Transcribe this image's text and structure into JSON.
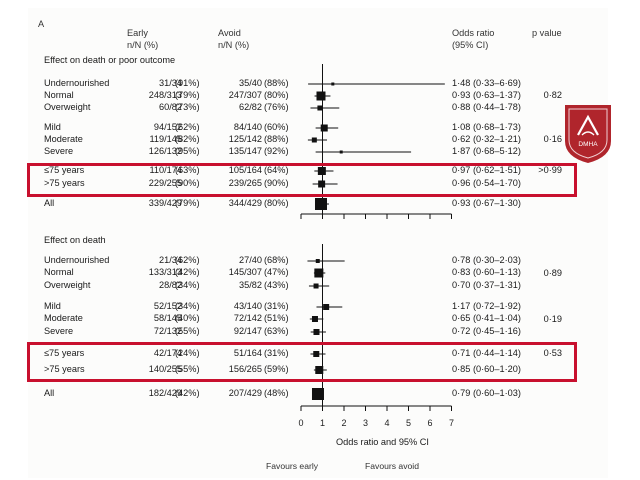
{
  "panel_label": "A",
  "headers": {
    "early": [
      "Early",
      "n/N (%)"
    ],
    "avoid": [
      "Avoid",
      "n/N (%)"
    ],
    "or": [
      "Odds ratio",
      "(95% CI)"
    ],
    "p": "p value"
  },
  "colors": {
    "highlight": "#c8102e",
    "marker": "#111111",
    "logo": "#b0252c"
  },
  "logo_text": "DMHA",
  "axis": {
    "min": 0,
    "max": 7,
    "ticks": [
      "0",
      "1",
      "2",
      "3",
      "4",
      "5",
      "6",
      "7"
    ],
    "ref": 1,
    "title": "Odds ratio and 95% CI"
  },
  "favours": {
    "left": "Favours early",
    "right": "Favours avoid"
  },
  "sections": [
    {
      "title": "Effect on death or poor outcome",
      "groups": [
        {
          "p": "0·82",
          "rows": [
            {
              "label": "Undernourished",
              "early_n": "31/34",
              "early_pct": "(91%)",
              "avoid_n": "35/40",
              "avoid_pct": "(88%)",
              "or_text": "1·48 (0·33–6·69)",
              "or": 1.48,
              "lo": 0.33,
              "hi": 6.69,
              "w": 3
            },
            {
              "label": "Normal",
              "early_n": "248/313",
              "early_pct": "(79%)",
              "avoid_n": "247/307",
              "avoid_pct": "(80%)",
              "or_text": "0·93 (0·63–1·37)",
              "or": 0.93,
              "lo": 0.63,
              "hi": 1.37,
              "w": 9
            },
            {
              "label": "Overweight",
              "early_n": "60/82",
              "early_pct": "(73%)",
              "avoid_n": "62/82",
              "avoid_pct": "(76%)",
              "or_text": "0·88 (0·44–1·78)",
              "or": 0.88,
              "lo": 0.44,
              "hi": 1.78,
              "w": 5
            }
          ]
        },
        {
          "p": "0·16",
          "rows": [
            {
              "label": "Mild",
              "early_n": "94/152",
              "early_pct": "(62%)",
              "avoid_n": "84/140",
              "avoid_pct": "(60%)",
              "or_text": "1·08 (0·68–1·73)",
              "or": 1.08,
              "lo": 0.68,
              "hi": 1.73,
              "w": 7
            },
            {
              "label": "Moderate",
              "early_n": "119/145",
              "early_pct": "(82%)",
              "avoid_n": "125/142",
              "avoid_pct": "(88%)",
              "or_text": "0·62 (0·32–1·21)",
              "or": 0.62,
              "lo": 0.32,
              "hi": 1.21,
              "w": 5
            },
            {
              "label": "Severe",
              "early_n": "126/132",
              "early_pct": "(95%)",
              "avoid_n": "135/147",
              "avoid_pct": "(92%)",
              "or_text": "1·87 (0·68–5·12)",
              "or": 1.87,
              "lo": 0.68,
              "hi": 5.12,
              "w": 3
            }
          ]
        },
        {
          "p": ">0·99",
          "highlight": true,
          "rows": [
            {
              "label": "≤75 years",
              "early_n": "110/174",
              "early_pct": "(63%)",
              "avoid_n": "105/164",
              "avoid_pct": "(64%)",
              "or_text": "0·97 (0·62–1·51)",
              "or": 0.97,
              "lo": 0.62,
              "hi": 1.51,
              "w": 8
            },
            {
              "label": ">75 years",
              "early_n": "229/255",
              "early_pct": "(90%)",
              "avoid_n": "239/265",
              "avoid_pct": "(90%)",
              "or_text": "0·96 (0·54–1·70)",
              "or": 0.96,
              "lo": 0.54,
              "hi": 1.7,
              "w": 7
            }
          ]
        },
        {
          "p": "",
          "rows": [
            {
              "label": "All",
              "early_n": "339/429",
              "early_pct": "(79%)",
              "avoid_n": "344/429",
              "avoid_pct": "(80%)",
              "or_text": "0·93 (0·67–1·30)",
              "or": 0.93,
              "lo": 0.67,
              "hi": 1.3,
              "w": 12
            }
          ]
        }
      ]
    },
    {
      "title": "Effect on death",
      "groups": [
        {
          "p": "0·89",
          "rows": [
            {
              "label": "Undernourished",
              "early_n": "21/34",
              "early_pct": "(62%)",
              "avoid_n": "27/40",
              "avoid_pct": "(68%)",
              "or_text": "0·78 (0·30–2·03)",
              "or": 0.78,
              "lo": 0.3,
              "hi": 2.03,
              "w": 4
            },
            {
              "label": "Normal",
              "early_n": "133/313",
              "early_pct": "(42%)",
              "avoid_n": "145/307",
              "avoid_pct": "(47%)",
              "or_text": "0·83 (0·60–1·13)",
              "or": 0.83,
              "lo": 0.6,
              "hi": 1.13,
              "w": 9
            },
            {
              "label": "Overweight",
              "early_n": "28/82",
              "early_pct": "(34%)",
              "avoid_n": "35/82",
              "avoid_pct": "(43%)",
              "or_text": "0·70 (0·37–1·31)",
              "or": 0.7,
              "lo": 0.37,
              "hi": 1.31,
              "w": 5
            }
          ]
        },
        {
          "p": "0·19",
          "rows": [
            {
              "label": "Mild",
              "early_n": "52/152",
              "early_pct": "(34%)",
              "avoid_n": "43/140",
              "avoid_pct": "(31%)",
              "or_text": "1·17 (0·72–1·92)",
              "or": 1.17,
              "lo": 0.72,
              "hi": 1.92,
              "w": 6
            },
            {
              "label": "Moderate",
              "early_n": "58/145",
              "early_pct": "(40%)",
              "avoid_n": "72/142",
              "avoid_pct": "(51%)",
              "or_text": "0·65 (0·41–1·04)",
              "or": 0.65,
              "lo": 0.41,
              "hi": 1.04,
              "w": 6
            },
            {
              "label": "Severe",
              "early_n": "72/132",
              "early_pct": "(55%)",
              "avoid_n": "92/147",
              "avoid_pct": "(63%)",
              "or_text": "0·72 (0·45–1·16)",
              "or": 0.72,
              "lo": 0.45,
              "hi": 1.16,
              "w": 6
            }
          ]
        },
        {
          "p": "0·53",
          "highlight": true,
          "rows": [
            {
              "label": "≤75 years",
              "early_n": "42/174",
              "early_pct": "(24%)",
              "avoid_n": "51/164",
              "avoid_pct": "(31%)",
              "or_text": "0·71 (0·44–1·14)",
              "or": 0.71,
              "lo": 0.44,
              "hi": 1.14,
              "w": 6
            },
            {
              "label": ">75 years",
              "early_n": "140/255",
              "early_pct": "(55%)",
              "avoid_n": "156/265",
              "avoid_pct": "(59%)",
              "or_text": "0·85 (0·60–1·20)",
              "or": 0.85,
              "lo": 0.6,
              "hi": 1.2,
              "w": 8
            }
          ]
        },
        {
          "p": "",
          "rows": [
            {
              "label": "All",
              "early_n": "182/429",
              "early_pct": "(42%)",
              "avoid_n": "207/429",
              "avoid_pct": "(48%)",
              "or_text": "0·79 (0·60–1·03)",
              "or": 0.79,
              "lo": 0.6,
              "hi": 1.03,
              "w": 12
            }
          ]
        }
      ]
    }
  ]
}
